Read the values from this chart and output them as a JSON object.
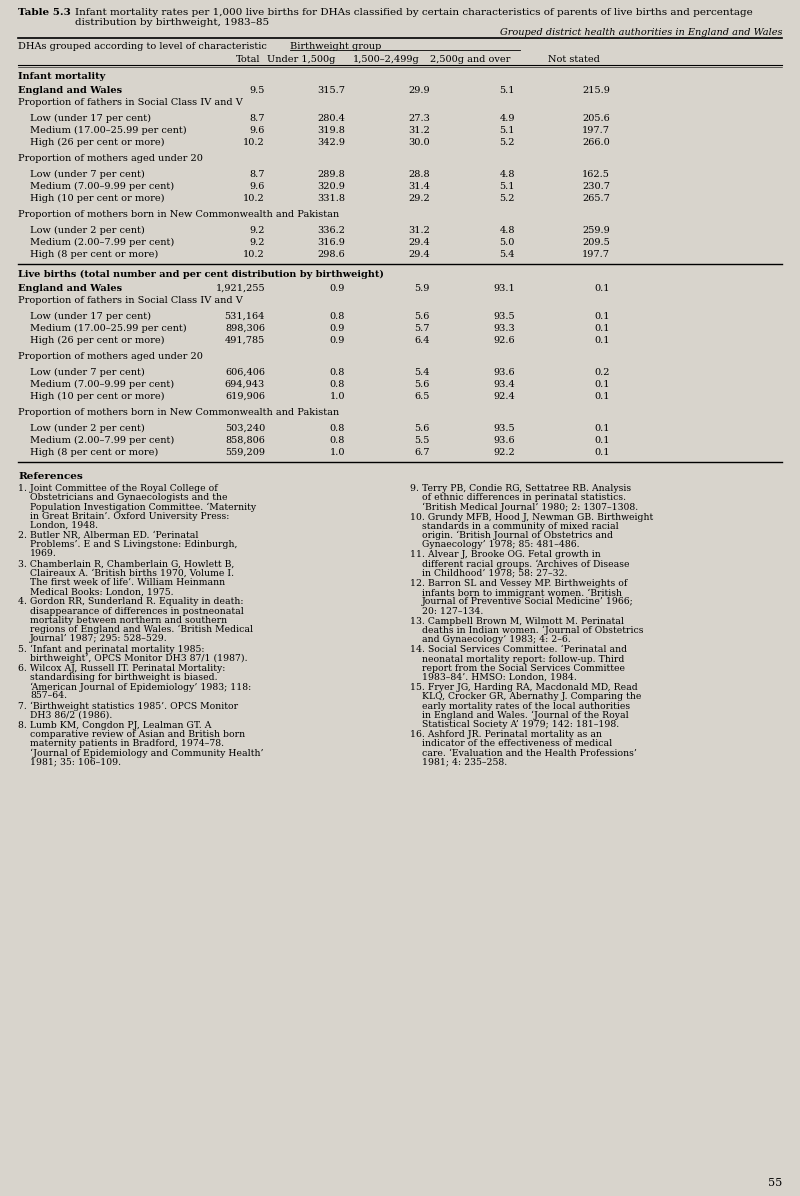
{
  "title_bold": "Table 5.3",
  "title_text": "  Infant mortality rates per 1,000 live births for DHAs classified by certain characteristics of parents of live births and percentage\n            distribution by birthweight, 1983–85",
  "subtitle": "Grouped district health authorities in England and Wales",
  "bg_color": "#d8d4cc",
  "col_header_left": "DHAs grouped according to level of characteristic",
  "col_header_group": "Birthweight group",
  "col_headers": [
    "Total",
    "Under 1,500g",
    "1,500–2,499g",
    "2,500g and over",
    "Not stated"
  ],
  "table_sections": [
    {
      "section_header": "Infant mortality",
      "rows": [
        {
          "label": "England and Wales",
          "bold": true,
          "indent": 0,
          "values": [
            "9.5",
            "315.7",
            "29.9",
            "5.1",
            "215.9"
          ]
        },
        {
          "label": "Proportion of fathers in Social Class IV and V",
          "bold": false,
          "indent": 0,
          "values": null
        },
        {
          "label": "Low (under 17 per cent)",
          "bold": false,
          "indent": 1,
          "values": [
            "8.7",
            "280.4",
            "27.3",
            "4.9",
            "205.6"
          ]
        },
        {
          "label": "Medium (17.00–25.99 per cent)",
          "bold": false,
          "indent": 1,
          "values": [
            "9.6",
            "319.8",
            "31.2",
            "5.1",
            "197.7"
          ]
        },
        {
          "label": "High (26 per cent or more)",
          "bold": false,
          "indent": 1,
          "values": [
            "10.2",
            "342.9",
            "30.0",
            "5.2",
            "266.0"
          ]
        },
        {
          "label": "Proportion of mothers aged under 20",
          "bold": false,
          "indent": 0,
          "values": null
        },
        {
          "label": "Low (under 7 per cent)",
          "bold": false,
          "indent": 1,
          "values": [
            "8.7",
            "289.8",
            "28.8",
            "4.8",
            "162.5"
          ]
        },
        {
          "label": "Medium (7.00–9.99 per cent)",
          "bold": false,
          "indent": 1,
          "values": [
            "9.6",
            "320.9",
            "31.4",
            "5.1",
            "230.7"
          ]
        },
        {
          "label": "High (10 per cent or more)",
          "bold": false,
          "indent": 1,
          "values": [
            "10.2",
            "331.8",
            "29.2",
            "5.2",
            "265.7"
          ]
        },
        {
          "label": "Proportion of mothers born in New Commonwealth and Pakistan",
          "bold": false,
          "indent": 0,
          "values": null
        },
        {
          "label": "Low (under 2 per cent)",
          "bold": false,
          "indent": 1,
          "values": [
            "9.2",
            "336.2",
            "31.2",
            "4.8",
            "259.9"
          ]
        },
        {
          "label": "Medium (2.00–7.99 per cent)",
          "bold": false,
          "indent": 1,
          "values": [
            "9.2",
            "316.9",
            "29.4",
            "5.0",
            "209.5"
          ]
        },
        {
          "label": "High (8 per cent or more)",
          "bold": false,
          "indent": 1,
          "values": [
            "10.2",
            "298.6",
            "29.4",
            "5.4",
            "197.7"
          ]
        }
      ]
    },
    {
      "section_header": "Live births (total number and per cent distribution by birthweight)",
      "rows": [
        {
          "label": "England and Wales",
          "bold": true,
          "indent": 0,
          "values": [
            "1,921,255",
            "0.9",
            "5.9",
            "93.1",
            "0.1"
          ]
        },
        {
          "label": "Proportion of fathers in Social Class IV and V",
          "bold": false,
          "indent": 0,
          "values": null
        },
        {
          "label": "Low (under 17 per cent)",
          "bold": false,
          "indent": 1,
          "values": [
            "531,164",
            "0.8",
            "5.6",
            "93.5",
            "0.1"
          ]
        },
        {
          "label": "Medium (17.00–25.99 per cent)",
          "bold": false,
          "indent": 1,
          "values": [
            "898,306",
            "0.9",
            "5.7",
            "93.3",
            "0.1"
          ]
        },
        {
          "label": "High (26 per cent or more)",
          "bold": false,
          "indent": 1,
          "values": [
            "491,785",
            "0.9",
            "6.4",
            "92.6",
            "0.1"
          ]
        },
        {
          "label": "Proportion of mothers aged under 20",
          "bold": false,
          "indent": 0,
          "values": null
        },
        {
          "label": "Low (under 7 per cent)",
          "bold": false,
          "indent": 1,
          "values": [
            "606,406",
            "0.8",
            "5.4",
            "93.6",
            "0.2"
          ]
        },
        {
          "label": "Medium (7.00–9.99 per cent)",
          "bold": false,
          "indent": 1,
          "values": [
            "694,943",
            "0.8",
            "5.6",
            "93.4",
            "0.1"
          ]
        },
        {
          "label": "High (10 per cent or more)",
          "bold": false,
          "indent": 1,
          "values": [
            "619,906",
            "1.0",
            "6.5",
            "92.4",
            "0.1"
          ]
        },
        {
          "label": "Proportion of mothers born in New Commonwealth and Pakistan",
          "bold": false,
          "indent": 0,
          "values": null
        },
        {
          "label": "Low (under 2 per cent)",
          "bold": false,
          "indent": 1,
          "values": [
            "503,240",
            "0.8",
            "5.6",
            "93.5",
            "0.1"
          ]
        },
        {
          "label": "Medium (2.00–7.99 per cent)",
          "bold": false,
          "indent": 1,
          "values": [
            "858,806",
            "0.8",
            "5.5",
            "93.6",
            "0.1"
          ]
        },
        {
          "label": "High (8 per cent or more)",
          "bold": false,
          "indent": 1,
          "values": [
            "559,209",
            "1.0",
            "6.7",
            "92.2",
            "0.1"
          ]
        }
      ]
    }
  ],
  "references_title": "References",
  "references_left": [
    "1. Joint Committee of the Royal College of Obstetricians and Gynaecologists and the Population Investigation Committee. ‘Maternity in Great Britain’. Oxford University Press: London, 1948.",
    "2. Butler NR, Alberman ED. ‘Perinatal Problems’. E and S Livingstone: Edinburgh, 1969.",
    "3. Chamberlain R, Chamberlain G, Howlett B, Claireaux A. ‘British births 1970, Volume I. The first week of life’. William Heinmann Medical Books: London, 1975.",
    "4. Gordon RR, Sunderland R. Equality in death: disappearance of differences in postneonatal mortality between northern and southern regions of England and Wales. ‘British Medical Journal’ 1987; 295: 528–529.",
    "5. ‘Infant and perinatal mortality 1985: birthweight’, OPCS Monitor DH3 87/1 (1987).",
    "6. Wilcox AJ, Russell IT. Perinatal Mortality: standardising for birthweight is biased. ‘American Journal of Epidemiology’ 1983; 118: 857–64.",
    "7. ‘Birthweight statistics 1985’. OPCS Monitor DH3 86/2 (1986).",
    "8. Lumb KM, Congdon PJ, Lealman GT. A comparative review of Asian and British born maternity patients in Bradford, 1974–78. ‘Journal of Epidemiology and Community Health’ 1981; 35: 106–109."
  ],
  "references_right": [
    "9. Terry PB, Condie RG, Settatree RB. Analysis of ethnic differences in perinatal statistics. ‘British Medical Journal’ 1980; 2: 1307–1308.",
    "10. Grundy MFB, Hood J, Newman GB. Birthweight standards in a community of mixed racial origin. ‘British Journal of Obstetrics and Gynaecology’ 1978; 85: 481–486.",
    "11. Alvear J, Brooke OG. Fetal growth in different racial groups. ‘Archives of Disease in Childhood’ 1978; 58: 27–32.",
    "12. Barron SL and Vessey MP. Birthweights of infants born to immigrant women. ‘British Journal of Preventive Social Medicine’ 1966; 20: 127–134.",
    "13. Campbell Brown M, Wilmott M. Perinatal deaths in Indian women. ‘Journal of Obstetrics and Gynaecology’ 1983; 4: 2–6.",
    "14. Social Services Committee. ‘Perinatal and neonatal mortality report: follow-up. Third report from the Social Services Committee 1983–84’. HMSO: London, 1984.",
    "15. Fryer JG, Harding RA, Macdonald MD, Read KLQ, Crocker GR, Abernathy J. Comparing the early mortality rates of the local authorities in England and Wales. ‘Journal of the Royal Statistical Society A’ 1979; 142: 181–198.",
    "16. Ashford JR. Perinatal mortality as an indicator of the effectiveness of medical care. ‘Evaluation and the Health Professions’ 1981; 4: 235–258."
  ],
  "page_number": "55"
}
